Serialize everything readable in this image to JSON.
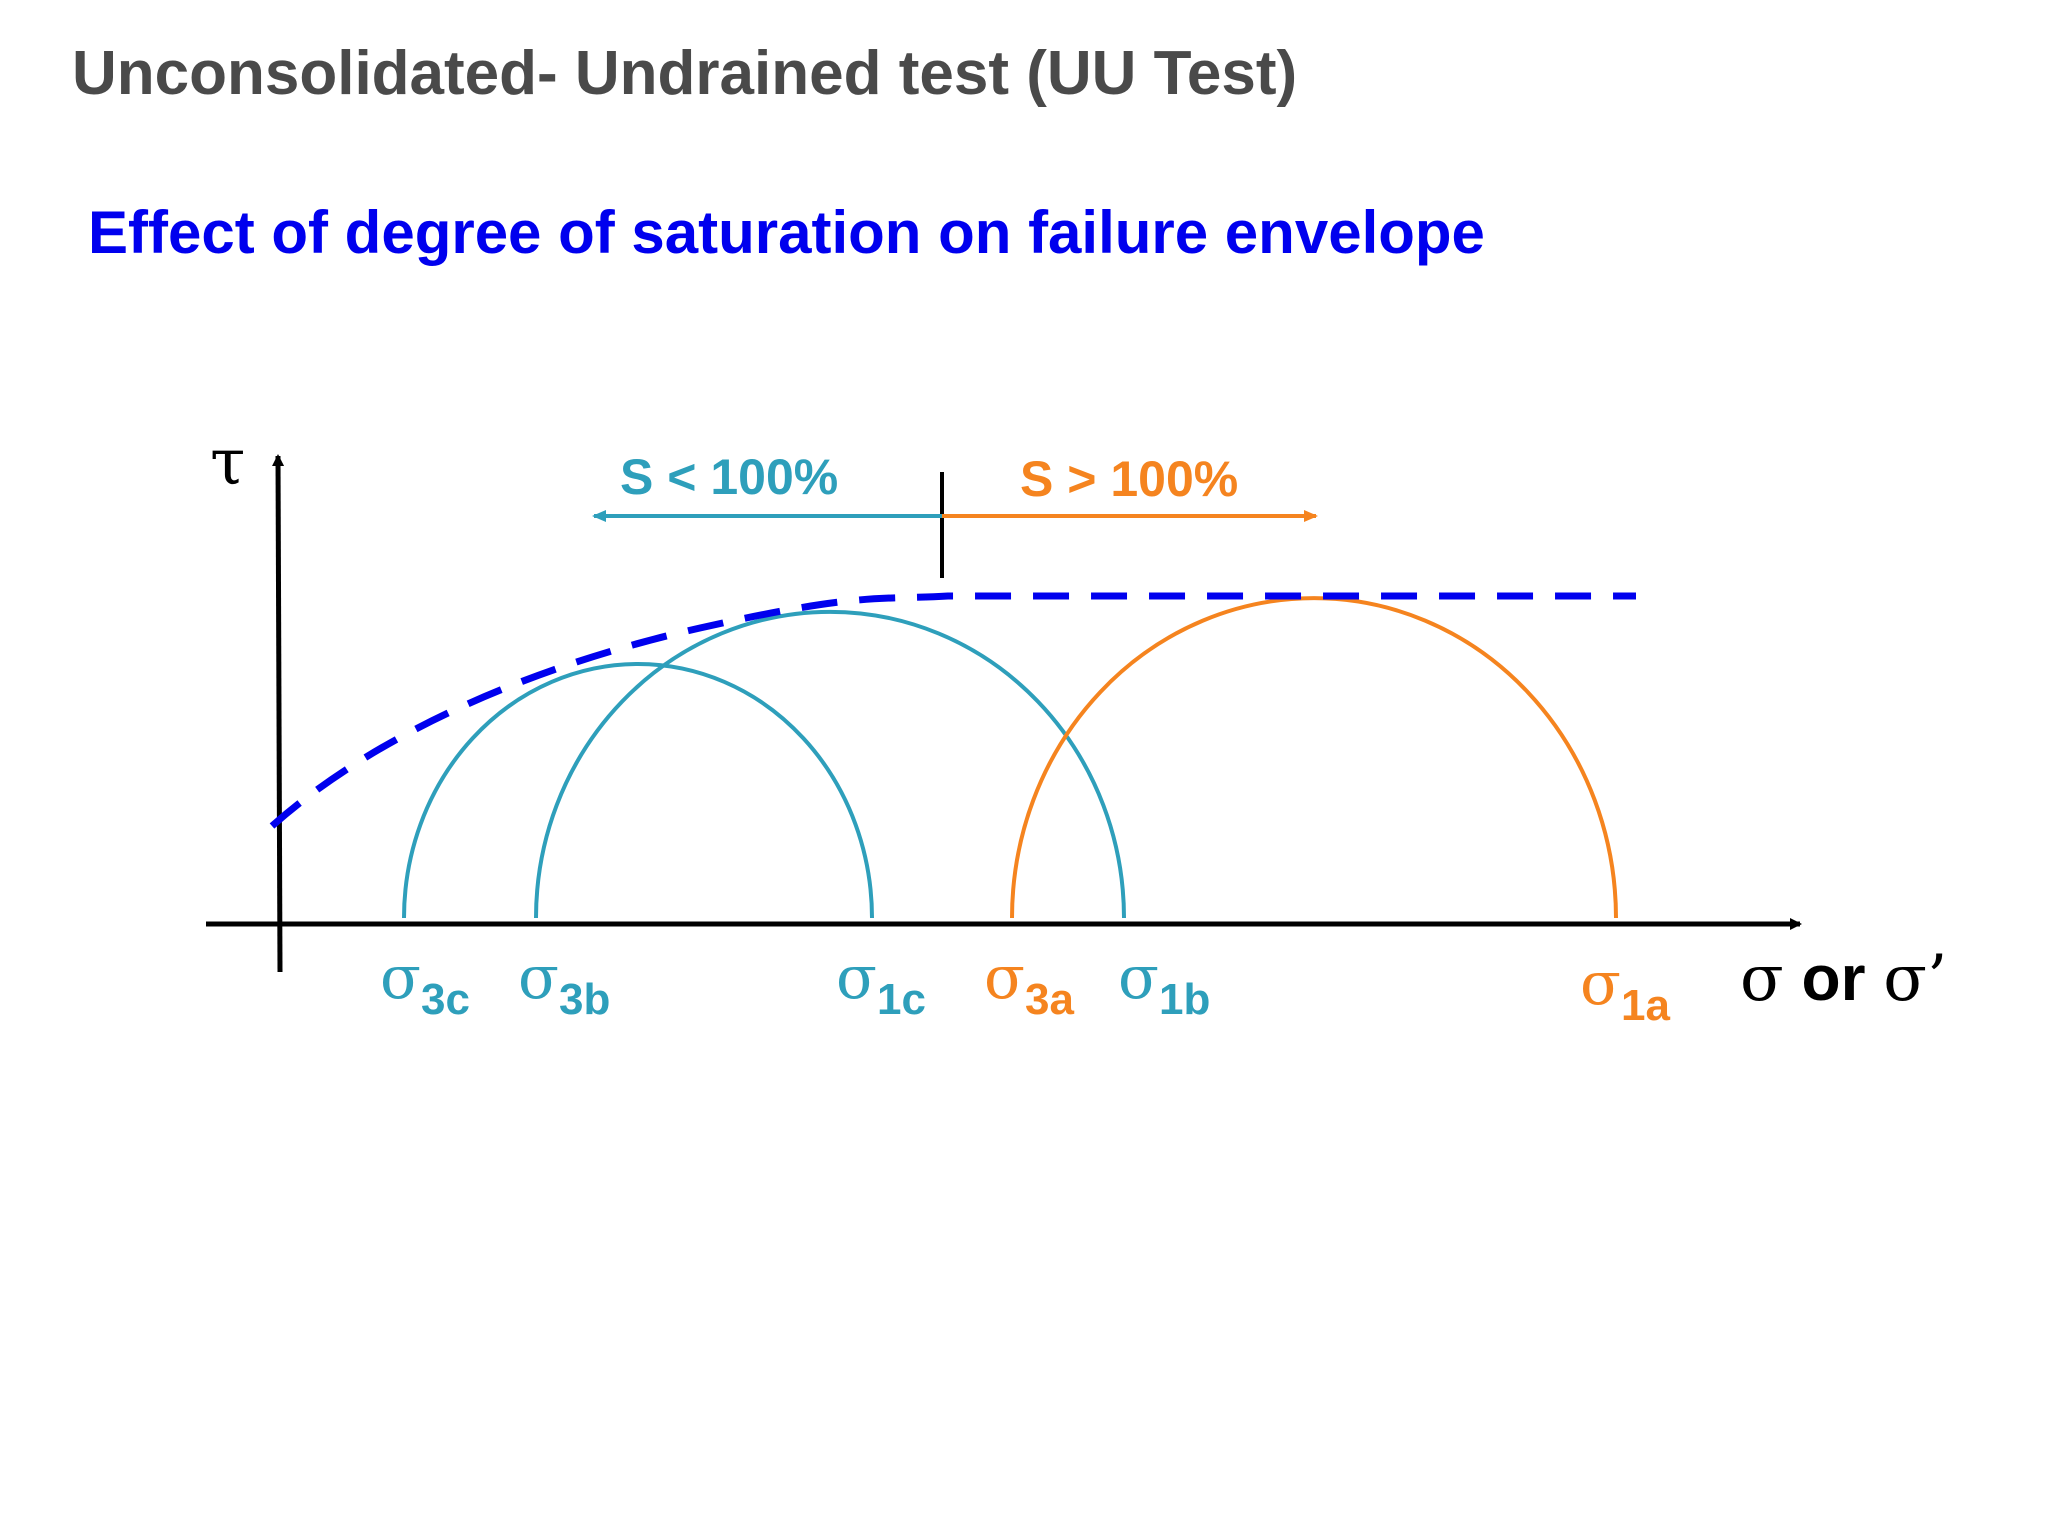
{
  "title": "Unconsolidated- Undrained test (UU Test)",
  "subtitle": "Effect of degree of saturation on failure envelope",
  "diagram": {
    "y_axis_label": "τ",
    "x_axis_label_sym1": "σ",
    "x_axis_label_or": " or ",
    "x_axis_label_sym2": "σ’",
    "region_left_label": "S < 100%",
    "region_right_label": "S > 100%",
    "stress_labels": [
      {
        "sym": "σ",
        "sub": "3c",
        "color": "#2e9fbb"
      },
      {
        "sym": "σ",
        "sub": "3b",
        "color": "#2e9fbb"
      },
      {
        "sym": "σ",
        "sub": "1c",
        "color": "#2e9fbb"
      },
      {
        "sym": "σ",
        "sub": "3a",
        "color": "#f5841f"
      },
      {
        "sym": "σ",
        "sub": "1b",
        "color": "#2e9fbb"
      },
      {
        "sym": "σ",
        "sub": "1a",
        "color": "#f5841f"
      }
    ],
    "colors": {
      "unsaturated": "#2e9fbb",
      "saturated": "#f5841f",
      "envelope": "#0000ee",
      "axes": "#000000"
    }
  }
}
